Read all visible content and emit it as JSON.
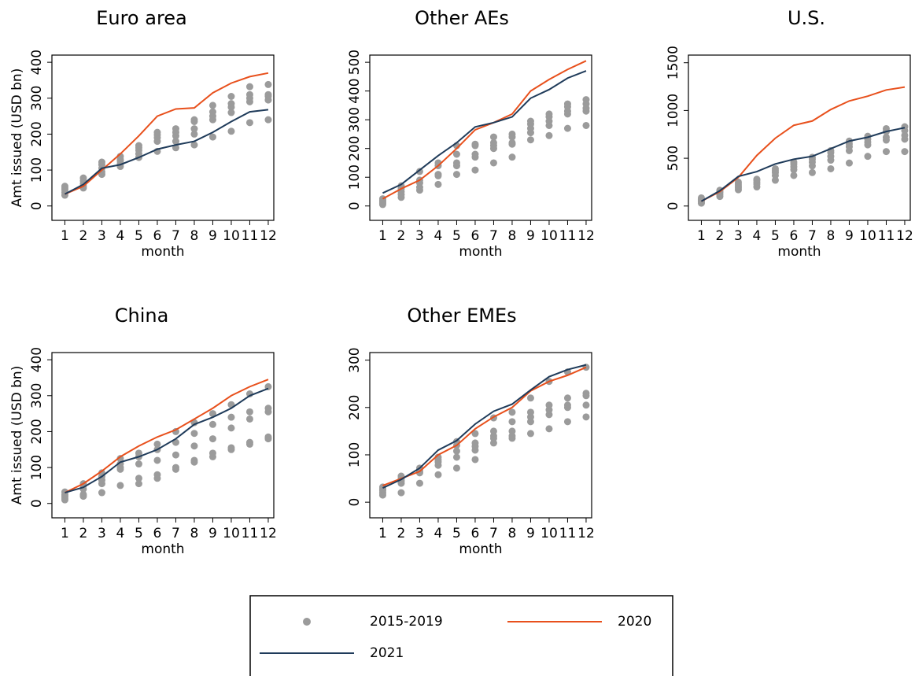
{
  "chart_data": [
    {
      "type": "line",
      "title": "Euro area",
      "x_label": "month",
      "y_label": "Amt issued (USD bn)",
      "x": [
        1,
        2,
        3,
        4,
        5,
        6,
        7,
        8,
        9,
        10,
        11,
        12
      ],
      "xticks": [
        1,
        2,
        3,
        4,
        5,
        6,
        7,
        8,
        9,
        10,
        11,
        12
      ],
      "xlim": [
        0.3,
        12.3
      ],
      "ylim": [
        -40,
        420
      ],
      "yticks": [
        0,
        100,
        200,
        300,
        400
      ],
      "series": [
        {
          "type": "scatter",
          "color": "#9b9b9b",
          "values": [
            30,
            50,
            88,
            110,
            135,
            152,
            162,
            170,
            192,
            208,
            232,
            240
          ]
        },
        {
          "type": "scatter",
          "color": "#9b9b9b",
          "values": [
            38,
            55,
            95,
            118,
            145,
            180,
            180,
            200,
            240,
            260,
            290,
            295
          ]
        },
        {
          "type": "scatter",
          "color": "#9b9b9b",
          "values": [
            45,
            62,
            105,
            125,
            155,
            190,
            195,
            215,
            250,
            275,
            300,
            305
          ]
        },
        {
          "type": "scatter",
          "color": "#9b9b9b",
          "values": [
            50,
            70,
            115,
            130,
            162,
            198,
            205,
            235,
            262,
            285,
            310,
            310
          ]
        },
        {
          "type": "scatter",
          "color": "#9b9b9b",
          "values": [
            55,
            78,
            122,
            138,
            168,
            205,
            215,
            240,
            280,
            305,
            332,
            338
          ]
        },
        {
          "type": "line",
          "color": "#e8501c",
          "values": [
            33,
            55,
            100,
            145,
            195,
            250,
            270,
            273,
            315,
            342,
            360,
            370
          ]
        },
        {
          "type": "line",
          "color": "#1f3b5a",
          "values": [
            33,
            60,
            105,
            115,
            135,
            158,
            170,
            180,
            205,
            235,
            262,
            268
          ]
        }
      ]
    },
    {
      "type": "line",
      "title": "Other AEs",
      "x_label": "month",
      "x": [
        1,
        2,
        3,
        4,
        5,
        6,
        7,
        8,
        9,
        10,
        11,
        12
      ],
      "xticks": [
        1,
        2,
        3,
        4,
        5,
        6,
        7,
        8,
        9,
        10,
        11,
        12
      ],
      "xlim": [
        0.3,
        12.3
      ],
      "ylim": [
        -50,
        525
      ],
      "yticks": [
        0,
        100,
        200,
        300,
        400,
        500
      ],
      "series": [
        {
          "type": "scatter",
          "color": "#9b9b9b",
          "values": [
            5,
            30,
            55,
            75,
            110,
            125,
            150,
            170,
            230,
            245,
            270,
            280
          ]
        },
        {
          "type": "scatter",
          "color": "#9b9b9b",
          "values": [
            10,
            40,
            65,
            105,
            140,
            170,
            200,
            215,
            255,
            280,
            320,
            330
          ]
        },
        {
          "type": "scatter",
          "color": "#9b9b9b",
          "values": [
            15,
            50,
            80,
            110,
            150,
            180,
            210,
            220,
            270,
            295,
            330,
            340
          ]
        },
        {
          "type": "scatter",
          "color": "#9b9b9b",
          "values": [
            20,
            60,
            90,
            140,
            180,
            210,
            220,
            240,
            285,
            310,
            345,
            355
          ]
        },
        {
          "type": "scatter",
          "color": "#9b9b9b",
          "values": [
            25,
            70,
            120,
            150,
            210,
            215,
            240,
            250,
            295,
            320,
            355,
            370
          ]
        },
        {
          "type": "line",
          "color": "#e8501c",
          "values": [
            25,
            60,
            90,
            140,
            200,
            265,
            290,
            320,
            400,
            440,
            475,
            505
          ]
        },
        {
          "type": "line",
          "color": "#1f3b5a",
          "values": [
            45,
            75,
            125,
            175,
            220,
            275,
            290,
            310,
            375,
            405,
            445,
            470
          ]
        }
      ]
    },
    {
      "type": "line",
      "title": "U.S.",
      "x_label": "month",
      "x": [
        1,
        2,
        3,
        4,
        5,
        6,
        7,
        8,
        9,
        10,
        11,
        12
      ],
      "xticks": [
        1,
        2,
        3,
        4,
        5,
        6,
        7,
        8,
        9,
        10,
        11,
        12
      ],
      "xlim": [
        0.3,
        12.3
      ],
      "ylim": [
        -150,
        1580
      ],
      "yticks": [
        0,
        500,
        1000,
        1500
      ],
      "series": [
        {
          "type": "scatter",
          "color": "#9b9b9b",
          "values": [
            30,
            100,
            170,
            200,
            270,
            320,
            350,
            390,
            450,
            520,
            570,
            570
          ]
        },
        {
          "type": "scatter",
          "color": "#9b9b9b",
          "values": [
            45,
            120,
            190,
            230,
            320,
            380,
            420,
            480,
            580,
            640,
            690,
            700
          ]
        },
        {
          "type": "scatter",
          "color": "#9b9b9b",
          "values": [
            55,
            140,
            210,
            250,
            350,
            410,
            460,
            520,
            620,
            670,
            720,
            740
          ]
        },
        {
          "type": "scatter",
          "color": "#9b9b9b",
          "values": [
            70,
            150,
            230,
            270,
            370,
            440,
            490,
            560,
            650,
            700,
            780,
            790
          ]
        },
        {
          "type": "scatter",
          "color": "#9b9b9b",
          "values": [
            85,
            165,
            250,
            280,
            390,
            460,
            510,
            580,
            680,
            730,
            810,
            830
          ]
        },
        {
          "type": "line",
          "color": "#e8501c",
          "values": [
            50,
            150,
            300,
            530,
            710,
            845,
            890,
            1010,
            1100,
            1150,
            1215,
            1245
          ]
        },
        {
          "type": "line",
          "color": "#1f3b5a",
          "values": [
            50,
            160,
            310,
            360,
            440,
            490,
            520,
            600,
            680,
            720,
            780,
            820
          ]
        }
      ]
    },
    {
      "type": "line",
      "title": "China",
      "x_label": "month",
      "y_label": "Amt issued (USD bn)",
      "x": [
        1,
        2,
        3,
        4,
        5,
        6,
        7,
        8,
        9,
        10,
        11,
        12
      ],
      "xticks": [
        1,
        2,
        3,
        4,
        5,
        6,
        7,
        8,
        9,
        10,
        11,
        12
      ],
      "xlim": [
        0.3,
        12.3
      ],
      "ylim": [
        -40,
        420
      ],
      "yticks": [
        0,
        100,
        200,
        300,
        400
      ],
      "series": [
        {
          "type": "scatter",
          "color": "#9b9b9b",
          "values": [
            10,
            20,
            30,
            50,
            55,
            70,
            95,
            115,
            130,
            150,
            165,
            180
          ]
        },
        {
          "type": "scatter",
          "color": "#9b9b9b",
          "values": [
            15,
            25,
            55,
            95,
            70,
            80,
            100,
            120,
            140,
            155,
            170,
            185
          ]
        },
        {
          "type": "scatter",
          "color": "#9b9b9b",
          "values": [
            20,
            40,
            65,
            100,
            110,
            120,
            135,
            160,
            180,
            210,
            235,
            255
          ]
        },
        {
          "type": "scatter",
          "color": "#9b9b9b",
          "values": [
            25,
            50,
            75,
            110,
            130,
            150,
            170,
            195,
            220,
            240,
            255,
            265
          ]
        },
        {
          "type": "scatter",
          "color": "#9b9b9b",
          "values": [
            32,
            55,
            85,
            125,
            140,
            165,
            200,
            225,
            250,
            275,
            305,
            325
          ]
        },
        {
          "type": "line",
          "color": "#e8501c",
          "values": [
            30,
            55,
            90,
            130,
            160,
            185,
            205,
            235,
            265,
            300,
            325,
            345
          ]
        },
        {
          "type": "line",
          "color": "#1f3b5a",
          "values": [
            30,
            45,
            75,
            115,
            130,
            150,
            180,
            220,
            240,
            265,
            300,
            320
          ]
        }
      ]
    },
    {
      "type": "line",
      "title": "Other EMEs",
      "x_label": "month",
      "x": [
        1,
        2,
        3,
        4,
        5,
        6,
        7,
        8,
        9,
        10,
        11,
        12
      ],
      "xticks": [
        1,
        2,
        3,
        4,
        5,
        6,
        7,
        8,
        9,
        10,
        11,
        12
      ],
      "xlim": [
        0.3,
        12.3
      ],
      "ylim": [
        -33,
        316
      ],
      "yticks": [
        0,
        100,
        200,
        300
      ],
      "series": [
        {
          "type": "scatter",
          "color": "#9b9b9b",
          "values": [
            15,
            20,
            40,
            58,
            72,
            90,
            125,
            135,
            145,
            155,
            170,
            180
          ]
        },
        {
          "type": "scatter",
          "color": "#9b9b9b",
          "values": [
            20,
            40,
            62,
            78,
            95,
            110,
            135,
            140,
            170,
            185,
            200,
            205
          ]
        },
        {
          "type": "scatter",
          "color": "#9b9b9b",
          "values": [
            25,
            45,
            65,
            85,
            108,
            118,
            140,
            150,
            180,
            195,
            205,
            225
          ]
        },
        {
          "type": "scatter",
          "color": "#9b9b9b",
          "values": [
            28,
            50,
            70,
            90,
            120,
            125,
            150,
            170,
            190,
            205,
            220,
            230
          ]
        },
        {
          "type": "scatter",
          "color": "#9b9b9b",
          "values": [
            32,
            55,
            72,
            95,
            128,
            145,
            178,
            190,
            220,
            255,
            275,
            285
          ]
        },
        {
          "type": "line",
          "color": "#e8501c",
          "values": [
            35,
            50,
            65,
            100,
            120,
            155,
            180,
            200,
            235,
            255,
            268,
            285
          ]
        },
        {
          "type": "line",
          "color": "#1f3b5a",
          "values": [
            30,
            48,
            72,
            110,
            130,
            165,
            192,
            207,
            237,
            265,
            280,
            290
          ]
        }
      ]
    }
  ],
  "legend": [
    {
      "name": "2015-2019",
      "type": "scatter",
      "color": "#9b9b9b"
    },
    {
      "name": "2020",
      "type": "line",
      "color": "#e8501c"
    },
    {
      "name": "2021",
      "type": "line",
      "color": "#1f3b5a"
    }
  ]
}
